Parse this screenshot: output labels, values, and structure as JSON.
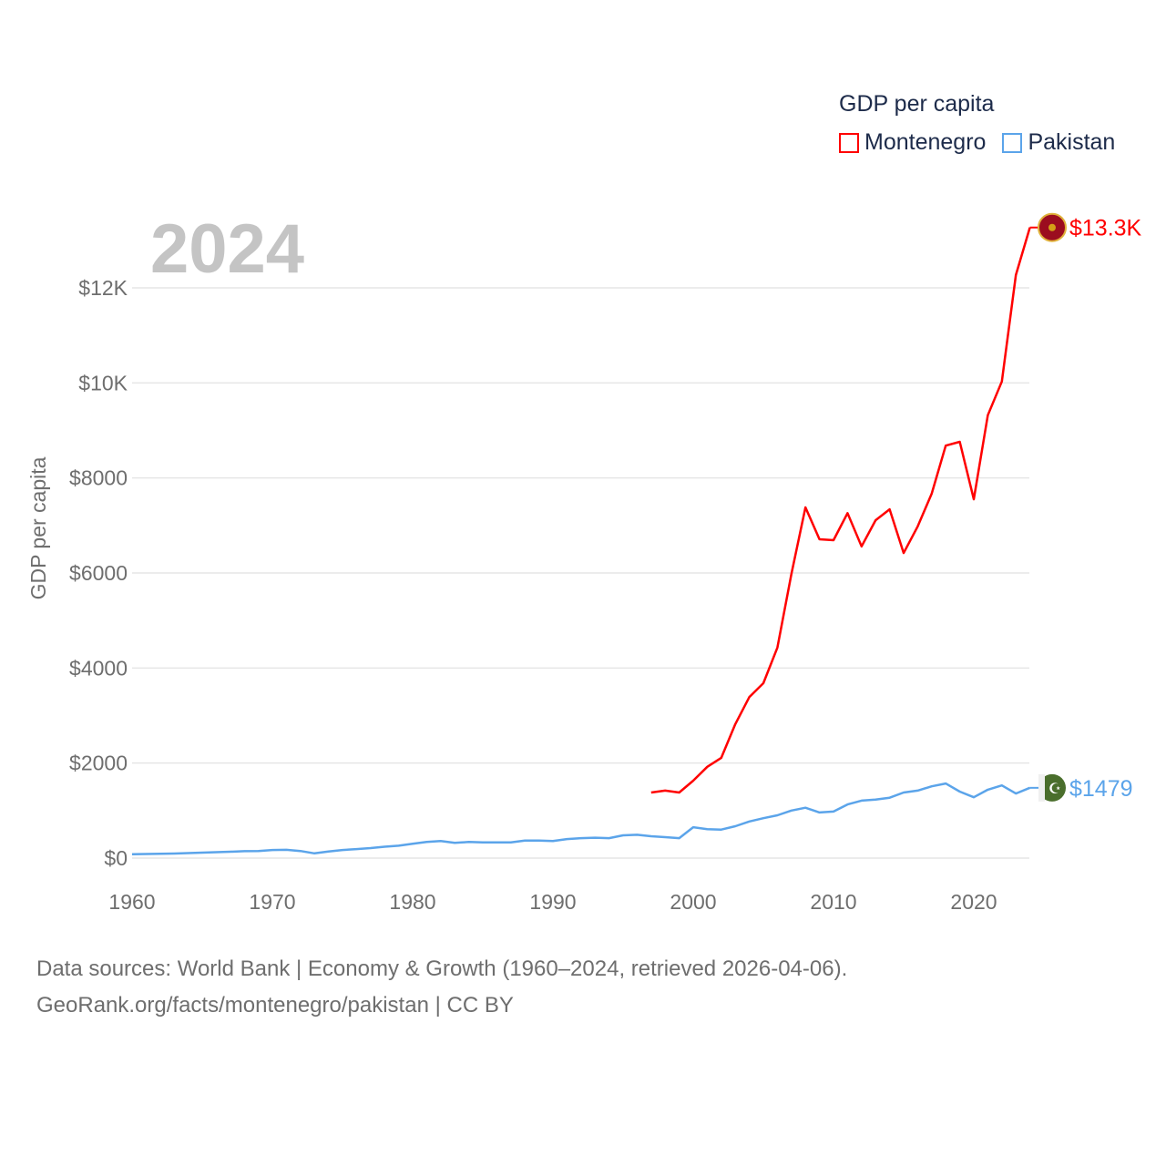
{
  "chart_data": {
    "type": "line",
    "title": "GDP per capita",
    "ylabel": "GDP per capita",
    "xlabel": "",
    "year_label": "2024",
    "xlim": [
      1960,
      2024
    ],
    "ylim": [
      0,
      13300
    ],
    "grid": true,
    "legend_placement": "top-right",
    "x_ticks": [
      1960,
      1970,
      1980,
      1990,
      2000,
      2010,
      2020
    ],
    "x_tick_labels": [
      "1960",
      "1970",
      "1980",
      "1990",
      "2000",
      "2010",
      "2020"
    ],
    "y_ticks": [
      0,
      2000,
      4000,
      6000,
      8000,
      10000,
      12000
    ],
    "y_tick_labels": [
      "$0",
      "$2000",
      "$4000",
      "$6000",
      "$8000",
      "$10K",
      "$12K"
    ],
    "series": [
      {
        "name": "Montenegro",
        "color": "#ff0000",
        "end_label": "$13.3K",
        "x": [
          1997,
          1998,
          1999,
          2000,
          2001,
          2002,
          2003,
          2004,
          2005,
          2006,
          2007,
          2008,
          2009,
          2010,
          2011,
          2012,
          2013,
          2014,
          2015,
          2016,
          2017,
          2018,
          2019,
          2020,
          2021,
          2022,
          2023,
          2024
        ],
        "values": [
          1380,
          1420,
          1380,
          1630,
          1920,
          2110,
          2820,
          3390,
          3680,
          4430,
          5980,
          7380,
          6710,
          6690,
          7260,
          6560,
          7110,
          7340,
          6420,
          6980,
          7670,
          8680,
          8760,
          7550,
          9320,
          10030,
          12270,
          13270
        ]
      },
      {
        "name": "Pakistan",
        "color": "#5ba4ea",
        "end_label": "$1479",
        "x": [
          1960,
          1961,
          1962,
          1963,
          1964,
          1965,
          1966,
          1967,
          1968,
          1969,
          1970,
          1971,
          1972,
          1973,
          1974,
          1975,
          1976,
          1977,
          1978,
          1979,
          1980,
          1981,
          1982,
          1983,
          1984,
          1985,
          1986,
          1987,
          1988,
          1989,
          1990,
          1991,
          1992,
          1993,
          1994,
          1995,
          1996,
          1997,
          1998,
          1999,
          2000,
          2001,
          2002,
          2003,
          2004,
          2005,
          2006,
          2007,
          2008,
          2009,
          2010,
          2011,
          2012,
          2013,
          2014,
          2015,
          2016,
          2017,
          2018,
          2019,
          2020,
          2021,
          2022,
          2023,
          2024
        ],
        "values": [
          82,
          86,
          90,
          95,
          105,
          115,
          125,
          135,
          145,
          150,
          170,
          175,
          150,
          100,
          140,
          170,
          190,
          210,
          240,
          260,
          300,
          340,
          360,
          320,
          340,
          330,
          330,
          330,
          370,
          370,
          360,
          400,
          420,
          430,
          420,
          480,
          490,
          460,
          440,
          420,
          650,
          610,
          600,
          670,
          770,
          840,
          900,
          1000,
          1060,
          960,
          980,
          1130,
          1210,
          1230,
          1270,
          1380,
          1420,
          1510,
          1570,
          1400,
          1280,
          1440,
          1530,
          1360,
          1479
        ]
      }
    ]
  },
  "footer": {
    "line1": "Data sources: World Bank | Economy & Growth (1960–2024, retrieved 2026-04-06).",
    "line2": "GeoRank.org/facts/montenegro/pakistan | CC BY"
  }
}
